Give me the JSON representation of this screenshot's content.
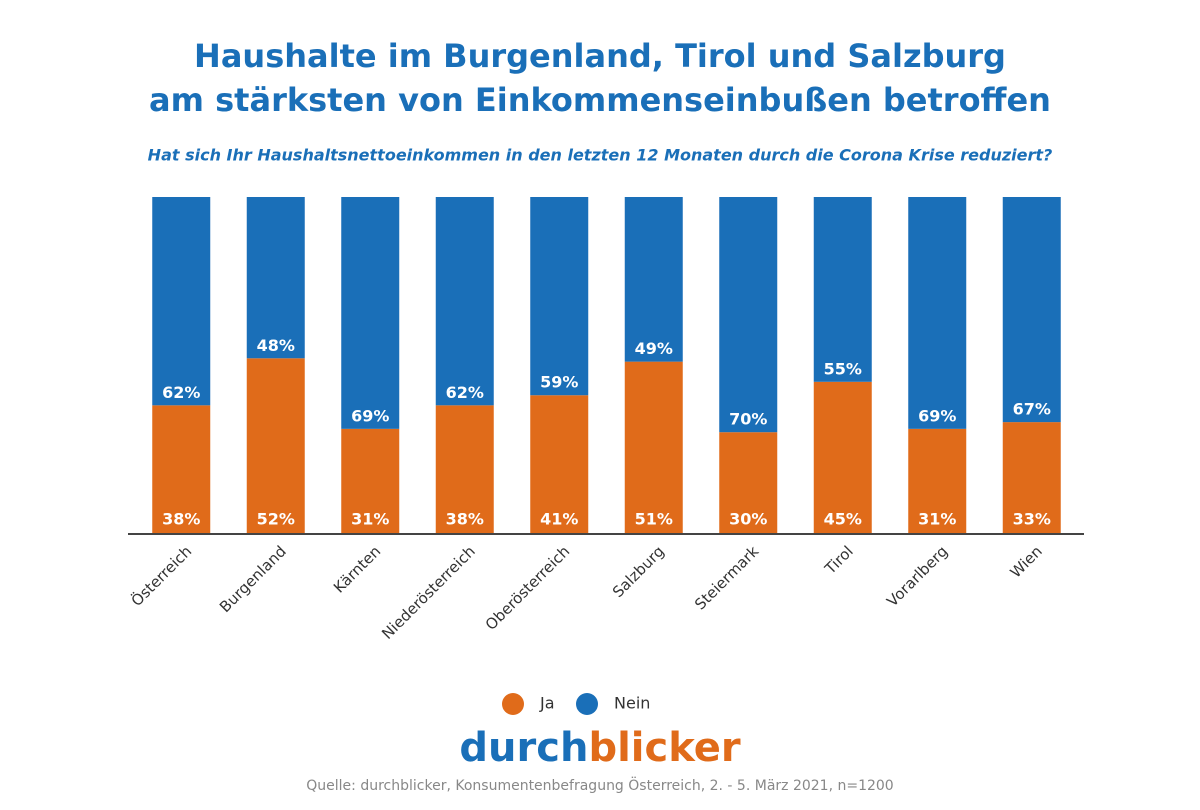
{
  "chart_data": {
    "type": "stacked-bar",
    "title": [
      "Haushalte im Burgenland, Tirol und Salzburg",
      "am stärksten von Einkommenseinbußen betroffen"
    ],
    "subtitle": "Hat sich Ihr Haushaltsnettoeinkommen in den letzten 12 Monaten durch die Corona Krise reduziert?",
    "categories": [
      "Österreich",
      "Burgenland",
      "Kärnten",
      "Niederösterreich",
      "Oberösterreich",
      "Salzburg",
      "Steiermark",
      "Tirol",
      "Vorarlberg",
      "Wien"
    ],
    "series": [
      {
        "name": "Ja",
        "color": "#e06b1a",
        "values": [
          38,
          52,
          31,
          38,
          41,
          51,
          30,
          45,
          31,
          33
        ],
        "value_labels": [
          "38%",
          "52%",
          "31%",
          "38%",
          "41%",
          "51%",
          "30%",
          "45%",
          "31%",
          "33%"
        ]
      },
      {
        "name": "Nein",
        "color": "#1a6fb8",
        "values": [
          62,
          48,
          69,
          62,
          59,
          49,
          70,
          55,
          69,
          67
        ],
        "value_labels": [
          "62%",
          "48%",
          "69%",
          "62%",
          "59%",
          "49%",
          "70%",
          "55%",
          "69%",
          "67%"
        ]
      }
    ],
    "logo": [
      "durch",
      "blicker"
    ],
    "source": "Quelle: durchblicker, Konsumentenbefragung Österreich, 2. - 5. März 2021, n=1200"
  }
}
